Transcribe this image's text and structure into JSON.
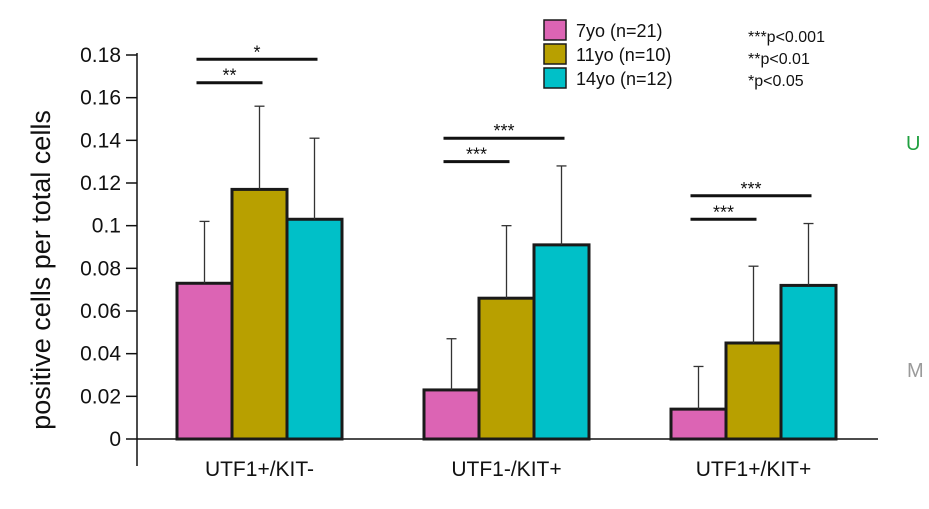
{
  "chart_data": {
    "type": "bar",
    "title": "",
    "xlabel": "",
    "ylabel": "positive cells per total cells",
    "ylim": [
      0,
      0.18
    ],
    "yticks": [
      "0",
      "0.02",
      "0.04",
      "0.06",
      "0.08",
      "0.1",
      "0.12",
      "0.14",
      "0.16",
      "0.18"
    ],
    "yticks_values": [
      0,
      0.02,
      0.04,
      0.06,
      0.08,
      0.1,
      0.12,
      0.14,
      0.16,
      0.18
    ],
    "categories": [
      "UTF1+/KIT-",
      "UTF1-/KIT+",
      "UTF1+/KIT+"
    ],
    "series": [
      {
        "name": "7yo (n=21)",
        "color": "#dc64b4",
        "values": [
          0.073,
          0.023,
          0.014
        ],
        "errors": [
          0.029,
          0.024,
          0.02
        ]
      },
      {
        "name": "11yo (n=10)",
        "color": "#b8a000",
        "values": [
          0.117,
          0.066,
          0.045
        ],
        "errors": [
          0.039,
          0.034,
          0.036
        ]
      },
      {
        "name": "14yo (n=12)",
        "color": "#00c0c8",
        "values": [
          0.103,
          0.091,
          0.072
        ],
        "errors": [
          0.038,
          0.037,
          0.029
        ]
      }
    ],
    "grid": false,
    "legend_position": "top-right",
    "significance_legend": [
      "***p<0.001",
      "**p<0.01",
      "*p<0.05"
    ],
    "significance": [
      {
        "category": 0,
        "from": 0,
        "to": 1,
        "label": "**",
        "level": 0.167
      },
      {
        "category": 0,
        "from": 0,
        "to": 2,
        "label": "*",
        "level": 0.178
      },
      {
        "category": 1,
        "from": 0,
        "to": 1,
        "label": "***",
        "level": 0.13
      },
      {
        "category": 1,
        "from": 0,
        "to": 2,
        "label": "***",
        "level": 0.141
      },
      {
        "category": 2,
        "from": 0,
        "to": 1,
        "label": "***",
        "level": 0.103
      },
      {
        "category": 2,
        "from": 0,
        "to": 2,
        "label": "***",
        "level": 0.114
      }
    ]
  },
  "edge_fragments": [
    {
      "text": "U",
      "color": "#20a040"
    },
    {
      "text": "M",
      "color": "#9a9a9a"
    }
  ]
}
